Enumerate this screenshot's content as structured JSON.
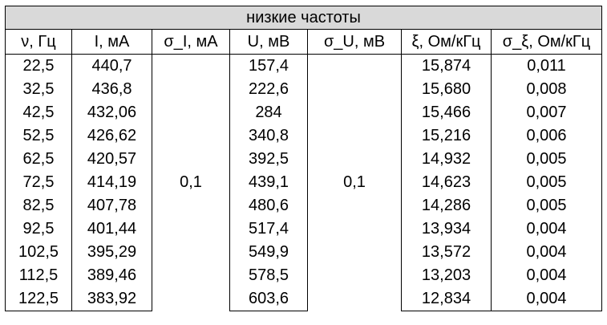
{
  "table": {
    "title": "низкие частоты",
    "headers": [
      "ν, Гц",
      "I, мА",
      "σ_I, мА",
      "U, мВ",
      "σ_U, мВ",
      "ξ, Ом/кГц",
      "σ_ξ, Ом/кГц"
    ],
    "sigma_I": "0,1",
    "sigma_U": "0,1",
    "rows": [
      {
        "nu": "22,5",
        "I": "440,7",
        "U": "157,4",
        "xi": "15,874",
        "sigma_xi": "0,011"
      },
      {
        "nu": "32,5",
        "I": "436,8",
        "U": "222,6",
        "xi": "15,680",
        "sigma_xi": "0,008"
      },
      {
        "nu": "42,5",
        "I": "432,06",
        "U": "284",
        "xi": "15,466",
        "sigma_xi": "0,007"
      },
      {
        "nu": "52,5",
        "I": "426,62",
        "U": "340,8",
        "xi": "15,216",
        "sigma_xi": "0,006"
      },
      {
        "nu": "62,5",
        "I": "420,57",
        "U": "392,5",
        "xi": "14,932",
        "sigma_xi": "0,005"
      },
      {
        "nu": "72,5",
        "I": "414,19",
        "U": "439,1",
        "xi": "14,623",
        "sigma_xi": "0,005"
      },
      {
        "nu": "82,5",
        "I": "407,78",
        "U": "480,6",
        "xi": "14,286",
        "sigma_xi": "0,005"
      },
      {
        "nu": "92,5",
        "I": "401,44",
        "U": "517,4",
        "xi": "13,934",
        "sigma_xi": "0,004"
      },
      {
        "nu": "102,5",
        "I": "395,29",
        "U": "549,9",
        "xi": "13,572",
        "sigma_xi": "0,004"
      },
      {
        "nu": "112,5",
        "I": "389,46",
        "U": "578,5",
        "xi": "13,203",
        "sigma_xi": "0,004"
      },
      {
        "nu": "122,5",
        "I": "383,92",
        "U": "603,6",
        "xi": "12,834",
        "sigma_xi": "0,004"
      }
    ]
  }
}
